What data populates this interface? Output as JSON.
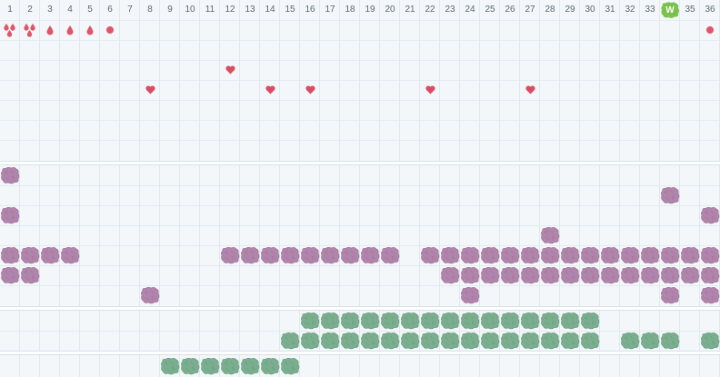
{
  "columns": [
    "1",
    "2",
    "3",
    "4",
    "5",
    "6",
    "7",
    "8",
    "9",
    "10",
    "11",
    "12",
    "13",
    "14",
    "15",
    "16",
    "17",
    "18",
    "19",
    "20",
    "21",
    "22",
    "23",
    "24",
    "25",
    "26",
    "27",
    "28",
    "29",
    "30",
    "31",
    "32",
    "33",
    "34",
    "35",
    "36"
  ],
  "colors": {
    "marker_red": "#e05567",
    "heart_red": "#d94d63",
    "purple_blob": "#b084ab",
    "purple_blob_edge": "#9a6c95",
    "green_blob": "#7aae8f",
    "green_blob_edge": "#5f9676",
    "badge_green": "#79c24b",
    "grid_bg": "#f3f7f9"
  },
  "badge": {
    "text": "W",
    "col": 34,
    "row": 1
  },
  "markers": [
    {
      "col": 1,
      "row": 2,
      "icon": "double-drop-icon"
    },
    {
      "col": 2,
      "row": 2,
      "icon": "double-drop-icon"
    },
    {
      "col": 3,
      "row": 2,
      "icon": "drop-icon"
    },
    {
      "col": 4,
      "row": 2,
      "icon": "drop-icon"
    },
    {
      "col": 5,
      "row": 2,
      "icon": "drop-icon"
    },
    {
      "col": 6,
      "row": 2,
      "icon": "dot-icon"
    },
    {
      "col": 36,
      "row": 2,
      "icon": "dot-icon"
    },
    {
      "col": 12,
      "row": 4,
      "icon": "heart-icon"
    },
    {
      "col": 8,
      "row": 5,
      "icon": "heart-icon"
    },
    {
      "col": 14,
      "row": 5,
      "icon": "heart-icon"
    },
    {
      "col": 16,
      "row": 5,
      "icon": "heart-icon"
    },
    {
      "col": 22,
      "row": 5,
      "icon": "heart-icon"
    },
    {
      "col": 27,
      "row": 5,
      "icon": "heart-icon"
    }
  ],
  "purple_rows": [
    {
      "row": 9,
      "cols": [
        1
      ]
    },
    {
      "row": 10,
      "cols": [
        34
      ]
    },
    {
      "row": 11,
      "cols": [
        1,
        36
      ]
    },
    {
      "row": 12,
      "cols": [
        28
      ]
    },
    {
      "row": 13,
      "cols": [
        1,
        2,
        3,
        4,
        12,
        13,
        14,
        15,
        16,
        17,
        18,
        19,
        20,
        22,
        23,
        24,
        25,
        26,
        27,
        28,
        29,
        30,
        31,
        32,
        33,
        34,
        35,
        36
      ]
    },
    {
      "row": 14,
      "cols": [
        1,
        2,
        23,
        24,
        25,
        26,
        27,
        28,
        29,
        30,
        31,
        32,
        33,
        34,
        35,
        36
      ]
    },
    {
      "row": 15,
      "cols": [
        8,
        24,
        34,
        36
      ]
    }
  ],
  "green_rows": [
    {
      "row": 16,
      "cols": [
        16,
        17,
        18,
        19,
        20,
        21,
        22,
        23,
        24,
        25,
        26,
        27,
        28,
        29,
        30
      ]
    },
    {
      "row": 17,
      "cols": [
        15,
        16,
        17,
        18,
        19,
        20,
        21,
        22,
        23,
        24,
        25,
        26,
        27,
        28,
        29,
        30,
        32,
        33,
        34,
        36
      ]
    },
    {
      "row": 18,
      "cols": [
        9,
        10,
        11,
        12,
        13,
        14,
        15
      ]
    }
  ]
}
